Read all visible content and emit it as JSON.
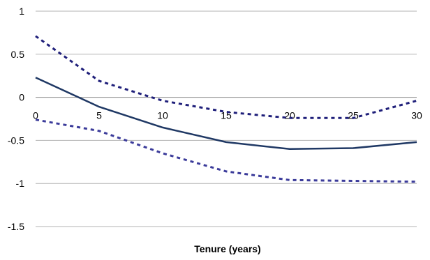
{
  "chart_data": {
    "type": "line",
    "title": "",
    "xlabel": "Tenure (years)",
    "ylabel": "",
    "x": [
      0,
      5,
      10,
      15,
      20,
      25,
      30
    ],
    "xlim": [
      0,
      30
    ],
    "ylim": [
      -1.5,
      1
    ],
    "x_ticks": [
      "0",
      "5",
      "10",
      "15",
      "20",
      "25",
      "30"
    ],
    "y_ticks": [
      "1",
      "0.5",
      "0",
      "-0.5",
      "-1",
      "-1.5"
    ],
    "grid": "horizontal",
    "legend": "none",
    "series": [
      {
        "style": "solid",
        "color": "#1f3864",
        "values": [
          0.23,
          -0.11,
          -0.35,
          -0.52,
          -0.6,
          -0.59,
          -0.52
        ]
      },
      {
        "style": "dashed",
        "color": "#1f1f7a",
        "values": [
          0.71,
          0.19,
          -0.04,
          -0.17,
          -0.24,
          -0.24,
          -0.04
        ]
      },
      {
        "style": "dashed",
        "color": "#3b3b9a",
        "values": [
          -0.26,
          -0.39,
          -0.65,
          -0.86,
          -0.96,
          -0.97,
          -0.98
        ]
      }
    ]
  }
}
